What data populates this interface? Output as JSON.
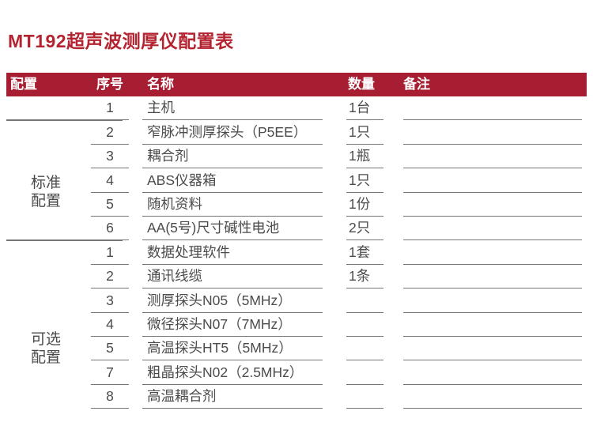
{
  "page": {
    "title": "MT192超声波测厚仪配置表"
  },
  "colors": {
    "accent_red": "#a71e32",
    "title_red": "#b32430",
    "body_text": "#4b4b4b",
    "rule_line": "#757575"
  },
  "table": {
    "headers": {
      "config": "配置",
      "no": "序号",
      "name": "名称",
      "qty": "数量",
      "note": "备注"
    },
    "groups": [
      {
        "label": "标准配置",
        "label_lines": [
          "标准",
          "配置"
        ],
        "rows": [
          {
            "no": "1",
            "name": "主机",
            "qty": "1台",
            "note": ""
          },
          {
            "no": "2",
            "name": "窄脉冲测厚探头（P5EE）",
            "qty": "1只",
            "note": ""
          },
          {
            "no": "3",
            "name": "耦合剂",
            "qty": "1瓶",
            "note": ""
          },
          {
            "no": "4",
            "name": "ABS仪器箱",
            "qty": "1只",
            "note": ""
          },
          {
            "no": "5",
            "name": "随机资料",
            "qty": "1份",
            "note": ""
          },
          {
            "no": "6",
            "name": "AA(5号)尺寸碱性电池",
            "qty": "2只",
            "note": ""
          }
        ]
      },
      {
        "label": "可选配置",
        "label_lines": [
          "可选",
          "配置"
        ],
        "rows": [
          {
            "no": "1",
            "name": "数据处理软件",
            "qty": "1套",
            "note": ""
          },
          {
            "no": "2",
            "name": "通讯线缆",
            "qty": "1条",
            "note": ""
          },
          {
            "no": "3",
            "name": "测厚探头N05（5MHz）",
            "qty": "",
            "note": ""
          },
          {
            "no": "4",
            "name": "微径探头N07（7MHz）",
            "qty": "",
            "note": ""
          },
          {
            "no": "5",
            "name": "高温探头HT5（5MHz）",
            "qty": "",
            "note": ""
          },
          {
            "no": "7",
            "name": "粗晶探头N02（2.5MHz）",
            "qty": "",
            "note": ""
          },
          {
            "no": "8",
            "name": "高温耦合剂",
            "qty": "",
            "note": ""
          }
        ]
      }
    ]
  }
}
